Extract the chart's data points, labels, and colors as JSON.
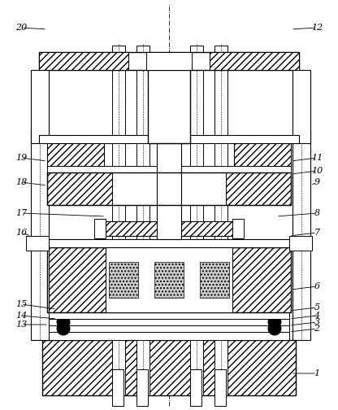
{
  "bg_color": "#ffffff",
  "lw_thin": 0.6,
  "lw_med": 0.8,
  "lw_thick": 1.0
}
